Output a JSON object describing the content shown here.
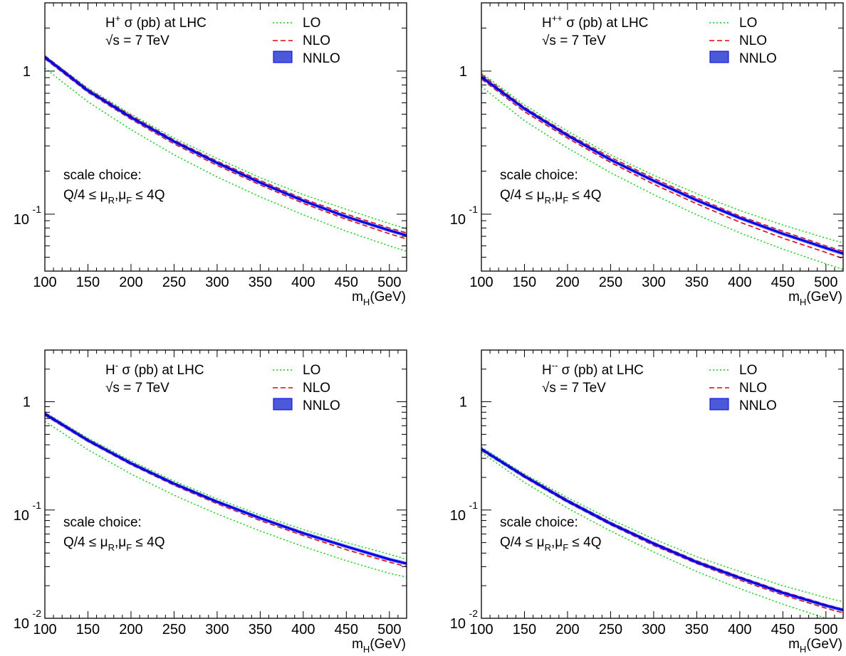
{
  "colors": {
    "LO": "#00dd00",
    "NLO": "#ee0000",
    "NNLO": "#0000ee",
    "NNLO_band": "#4a5ad8"
  },
  "chart_data": [
    {
      "type": "line",
      "title_prefix": "H",
      "title_sup": "+",
      "title_rest": " σ (pb) at LHC",
      "energy": "√s = 7 TeV",
      "scale_line1": "scale choice:",
      "scale_line2": {
        "a": "Q/4 ≤ μ",
        "s1": "R",
        "b": ",μ",
        "s2": "F",
        "c": " ≤ 4Q"
      },
      "x_label": {
        "main": "m",
        "sub": "H",
        "rest": "(GeV)"
      },
      "x_ticks": [
        "100",
        "150",
        "200",
        "250",
        "300",
        "350",
        "400",
        "450",
        "500"
      ],
      "y_ticks": [
        {
          "value": 1,
          "base": "1",
          "exp": ""
        },
        {
          "value": 0.1,
          "base": "10",
          "exp": "-1"
        }
      ],
      "xlim": [
        100,
        520
      ],
      "ylim": [
        0.04,
        3.0
      ],
      "y_scale": "log",
      "legend": [
        "LO",
        "NLO",
        "NNLO"
      ],
      "x": [
        100,
        150,
        200,
        250,
        300,
        350,
        400,
        450,
        500,
        520
      ],
      "series": [
        {
          "name": "LO",
          "values": [
            1.28,
            0.76,
            0.5,
            0.34,
            0.245,
            0.18,
            0.137,
            0.108,
            0.086,
            0.079
          ]
        },
        {
          "name": "LO",
          "values": [
            1.05,
            0.61,
            0.39,
            0.26,
            0.182,
            0.132,
            0.099,
            0.076,
            0.06,
            0.055
          ]
        },
        {
          "name": "NLO",
          "values": [
            1.28,
            0.75,
            0.49,
            0.33,
            0.235,
            0.172,
            0.128,
            0.1,
            0.08,
            0.074
          ]
        },
        {
          "name": "NLO",
          "values": [
            1.22,
            0.71,
            0.46,
            0.31,
            0.219,
            0.16,
            0.119,
            0.092,
            0.073,
            0.067
          ]
        },
        {
          "name": "NNLO",
          "values": [
            1.25,
            0.73,
            0.475,
            0.322,
            0.228,
            0.166,
            0.124,
            0.096,
            0.077,
            0.071
          ]
        }
      ]
    },
    {
      "type": "line",
      "title_prefix": "H",
      "title_sup": "++",
      "title_rest": " σ (pb) at LHC",
      "energy": "√s = 7 TeV",
      "scale_line1": "scale choice:",
      "scale_line2": {
        "a": "Q/4 ≤ μ",
        "s1": "R",
        "b": ",μ",
        "s2": "F",
        "c": " ≤ 4Q"
      },
      "x_label": {
        "main": "m",
        "sub": "H",
        "rest": "(GeV)"
      },
      "x_ticks": [
        "100",
        "150",
        "200",
        "250",
        "300",
        "350",
        "400",
        "450",
        "500"
      ],
      "y_ticks": [
        {
          "value": 1,
          "base": "1",
          "exp": ""
        },
        {
          "value": 0.1,
          "base": "10",
          "exp": "-1"
        }
      ],
      "xlim": [
        100,
        520
      ],
      "ylim": [
        0.04,
        3.0
      ],
      "y_scale": "log",
      "legend": [
        "LO",
        "NLO",
        "NNLO"
      ],
      "x": [
        100,
        150,
        200,
        250,
        300,
        350,
        400,
        450,
        500,
        520
      ],
      "series": [
        {
          "name": "LO",
          "values": [
            0.97,
            0.58,
            0.38,
            0.26,
            0.187,
            0.139,
            0.106,
            0.084,
            0.068,
            0.063
          ]
        },
        {
          "name": "LO",
          "values": [
            0.78,
            0.45,
            0.29,
            0.195,
            0.137,
            0.099,
            0.074,
            0.057,
            0.045,
            0.041
          ]
        },
        {
          "name": "NLO",
          "values": [
            0.95,
            0.56,
            0.365,
            0.25,
            0.178,
            0.13,
            0.097,
            0.076,
            0.06,
            0.055
          ]
        },
        {
          "name": "NLO",
          "values": [
            0.88,
            0.52,
            0.34,
            0.23,
            0.162,
            0.118,
            0.088,
            0.068,
            0.054,
            0.049
          ]
        },
        {
          "name": "NNLO",
          "values": [
            0.91,
            0.545,
            0.355,
            0.24,
            0.171,
            0.125,
            0.094,
            0.073,
            0.058,
            0.053
          ]
        }
      ]
    },
    {
      "type": "line",
      "title_prefix": "H",
      "title_sup": "-",
      "title_rest": " σ (pb) at LHC",
      "energy": "√s = 7 TeV",
      "scale_line1": "scale choice:",
      "scale_line2": {
        "a": "Q/4 ≤ μ",
        "s1": "R",
        "b": ",μ",
        "s2": "F",
        "c": " ≤ 4Q"
      },
      "x_label": {
        "main": "m",
        "sub": "H",
        "rest": "(GeV)"
      },
      "x_ticks": [
        "100",
        "150",
        "200",
        "250",
        "300",
        "350",
        "400",
        "450",
        "500"
      ],
      "y_ticks": [
        {
          "value": 1,
          "base": "1",
          "exp": ""
        },
        {
          "value": 0.1,
          "base": "10",
          "exp": "-1"
        },
        {
          "value": 0.01,
          "base": "10",
          "exp": "-2"
        }
      ],
      "xlim": [
        100,
        520
      ],
      "ylim": [
        0.01,
        3.0
      ],
      "y_scale": "log",
      "legend": [
        "LO",
        "NLO",
        "NNLO"
      ],
      "x": [
        100,
        150,
        200,
        250,
        300,
        350,
        400,
        450,
        500,
        520
      ],
      "series": [
        {
          "name": "LO",
          "values": [
            0.8,
            0.46,
            0.285,
            0.185,
            0.127,
            0.09,
            0.066,
            0.05,
            0.039,
            0.035
          ]
        },
        {
          "name": "LO",
          "values": [
            0.66,
            0.36,
            0.215,
            0.137,
            0.092,
            0.064,
            0.046,
            0.034,
            0.026,
            0.024
          ]
        },
        {
          "name": "NLO",
          "values": [
            0.79,
            0.45,
            0.275,
            0.178,
            0.121,
            0.085,
            0.062,
            0.046,
            0.035,
            0.032
          ]
        },
        {
          "name": "NLO",
          "values": [
            0.75,
            0.43,
            0.262,
            0.169,
            0.114,
            0.08,
            0.058,
            0.043,
            0.033,
            0.03
          ]
        },
        {
          "name": "NNLO",
          "values": [
            0.77,
            0.44,
            0.27,
            0.175,
            0.119,
            0.084,
            0.061,
            0.046,
            0.035,
            0.032
          ]
        }
      ]
    },
    {
      "type": "line",
      "title_prefix": "H",
      "title_sup": "--",
      "title_rest": " σ (pb) at LHC",
      "energy": "√s = 7 TeV",
      "scale_line1": "scale choice:",
      "scale_line2": {
        "a": "Q/4 ≤ μ",
        "s1": "R",
        "b": ",μ",
        "s2": "F",
        "c": " ≤ 4Q"
      },
      "x_label": {
        "main": "m",
        "sub": "H",
        "rest": "(GeV)"
      },
      "x_ticks": [
        "100",
        "150",
        "200",
        "250",
        "300",
        "350",
        "400",
        "450",
        "500"
      ],
      "y_ticks": [
        {
          "value": 1,
          "base": "1",
          "exp": ""
        },
        {
          "value": 0.1,
          "base": "10",
          "exp": "-1"
        },
        {
          "value": 0.01,
          "base": "10",
          "exp": "-2"
        }
      ],
      "xlim": [
        100,
        520
      ],
      "ylim": [
        0.01,
        3.0
      ],
      "y_scale": "log",
      "legend": [
        "LO",
        "NLO",
        "NNLO"
      ],
      "x": [
        100,
        150,
        200,
        250,
        300,
        350,
        400,
        450,
        500,
        520
      ],
      "series": [
        {
          "name": "LO",
          "values": [
            0.38,
            0.215,
            0.13,
            0.082,
            0.054,
            0.037,
            0.027,
            0.02,
            0.0155,
            0.0142
          ]
        },
        {
          "name": "LO",
          "values": [
            0.34,
            0.18,
            0.104,
            0.064,
            0.041,
            0.027,
            0.0188,
            0.0135,
            0.01,
            0.009
          ]
        },
        {
          "name": "NLO",
          "values": [
            0.37,
            0.21,
            0.124,
            0.077,
            0.05,
            0.034,
            0.0242,
            0.0177,
            0.0134,
            0.0121
          ]
        },
        {
          "name": "NLO",
          "values": [
            0.355,
            0.2,
            0.118,
            0.073,
            0.047,
            0.032,
            0.0225,
            0.0164,
            0.0124,
            0.0112
          ]
        },
        {
          "name": "NNLO",
          "values": [
            0.365,
            0.205,
            0.121,
            0.075,
            0.049,
            0.033,
            0.0236,
            0.0172,
            0.0131,
            0.0119
          ]
        }
      ]
    }
  ]
}
